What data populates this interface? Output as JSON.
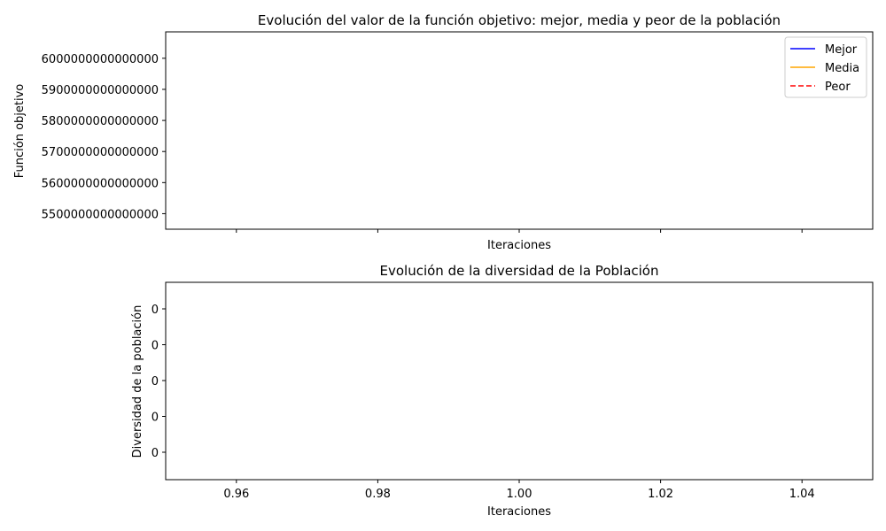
{
  "chart_data": [
    {
      "type": "line",
      "title": "Evolución del valor de la función objetivo: mejor, media y peor de la población",
      "xlabel": "Iteraciones",
      "ylabel": "Función objetivo",
      "xlim": [
        0.95,
        1.05
      ],
      "ylim": [
        5450000000000000,
        6085000000000000
      ],
      "y_ticks": [
        5500000000000000,
        5600000000000000,
        5700000000000000,
        5800000000000000,
        5900000000000000,
        6000000000000000
      ],
      "y_tick_labels": [
        "5500000000000000",
        "5600000000000000",
        "5700000000000000",
        "5800000000000000",
        "5900000000000000",
        "6000000000000000"
      ],
      "x_ticks": [
        0.96,
        0.98,
        1.0,
        1.02,
        1.04
      ],
      "x_tick_labels_visible": false,
      "series": [
        {
          "name": "Mejor",
          "color": "#0000ff",
          "style": "solid",
          "x": [],
          "values": []
        },
        {
          "name": "Media",
          "color": "#ffa500",
          "style": "solid",
          "x": [],
          "values": []
        },
        {
          "name": "Peor",
          "color": "#ff0000",
          "style": "dashed",
          "x": [],
          "values": []
        }
      ],
      "legend": "top-right",
      "grid": false
    },
    {
      "type": "line",
      "title": "Evolución de la diversidad de la Población",
      "xlabel": "Iteraciones",
      "ylabel": "Diversidad de la población",
      "xlim": [
        0.95,
        1.05
      ],
      "x_ticks": [
        0.96,
        0.98,
        1.0,
        1.02,
        1.04
      ],
      "x_tick_labels": [
        "0.96",
        "0.98",
        "1.00",
        "1.02",
        "1.04"
      ],
      "y_tick_labels": [
        "0",
        "0",
        "0",
        "0",
        "0"
      ],
      "series": [
        {
          "color": "#1f77b4",
          "style": "solid",
          "x": [],
          "values": []
        }
      ],
      "legend": "none",
      "grid": false
    }
  ]
}
